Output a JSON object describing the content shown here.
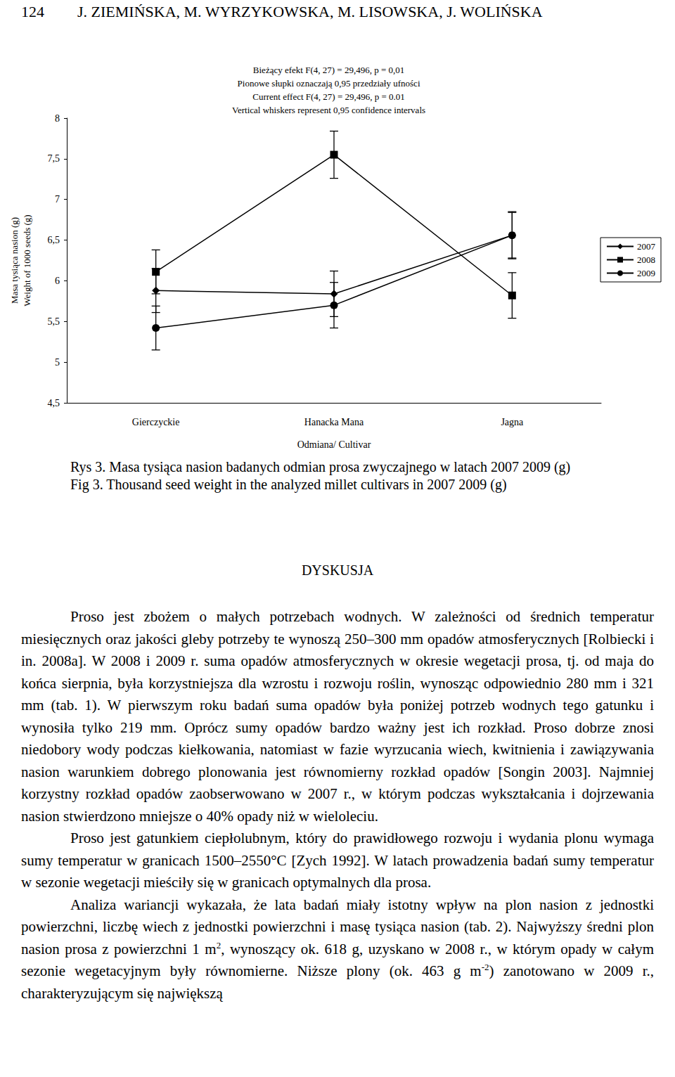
{
  "header": {
    "page_number": "124",
    "authors": "J. ZIEMIŃSKA, M. WYRZYKOWSKA, M. LISOWSKA, J. WOLIŃSKA"
  },
  "chart_data": {
    "type": "line",
    "annotations": [
      "Bieżący efekt F(4, 27) = 29,496, p = 0,01",
      "Pionowe słupki oznaczają 0,95 przedziały ufności",
      "Current effect F(4, 27) = 29,496, p = 0.01",
      "Vertical whiskers represent 0,95 confidence intervals"
    ],
    "x_label": "Odmiana/ Cultivar",
    "y_label": [
      "Masa tysiąca nasion (g)",
      "Weight of 1000 seeds (g)"
    ],
    "categories": [
      "Gierczyckie",
      "Hanacka Mana",
      "Jagna"
    ],
    "series": [
      {
        "name": "2007",
        "color": "#000000",
        "marker": "diamond",
        "values": [
          5.88,
          5.84,
          6.56
        ],
        "errors": [
          0.27,
          0.28,
          0.28
        ]
      },
      {
        "name": "2008",
        "color": "#000000",
        "marker": "square",
        "values": [
          6.11,
          7.55,
          5.82
        ],
        "errors": [
          0.27,
          0.29,
          0.28
        ]
      },
      {
        "name": "2009",
        "color": "#000000",
        "marker": "circle",
        "values": [
          5.42,
          5.7,
          6.56
        ],
        "errors": [
          0.27,
          0.28,
          0.29
        ]
      }
    ],
    "ylim": [
      4.5,
      8
    ],
    "yticks": [
      {
        "value": 4.5,
        "label": "4,5"
      },
      5,
      {
        "value": 5.5,
        "label": "5,5"
      },
      6,
      {
        "value": 6.5,
        "label": "6,5"
      },
      7,
      {
        "value": 7.5,
        "label": "7,5"
      },
      8
    ],
    "legend": "right",
    "grid": false
  },
  "captions": [
    "Rys 3. Masa tysiąca nasion badanych odmian prosa zwyczajnego w latach 2007 2009 (g)",
    "Fig 3. Thousand seed weight in the analyzed millet cultivars in 2007 2009 (g)"
  ],
  "section_title": "DYSKUSJA",
  "paragraphs": [
    [
      {
        "text": "Proso jest zbożem o małych potrzebach wodnych. W zależności od średnich temperatur miesięcznych oraz jakości gleby potrzeby te wynoszą 250–300 mm opadów atmosferycznych [Rolbiecki i in. 2008a]. W 2008 i 2009 r. suma opadów atmosferycznych w okresie wegetacji prosa, tj. od maja do końca sierpnia, była korzystniejsza dla wzrostu i rozwoju roślin, wynosząc odpowiednio 280 mm i 321 mm (tab. 1). W pierwszym roku badań suma opadów była poniżej potrzeb wodnych tego gatunku i wynosiła tylko 219 mm. Oprócz sumy opadów bardzo ważny jest ich rozkład. Proso dobrze znosi niedobory wody podczas kiełkowania, natomiast w fazie wyrzucania wiech, kwitnienia i zawiązywania nasion warunkiem dobrego plonowania jest równomierny rozkład opadów [Songin 2003]. Najmniej korzystny rozkład opadów zaobserwowano w 2007 r., w którym podczas wykształcania i dojrzewania nasion stwierdzono mniejsze o 40% opady niż w wieloleciu."
      }
    ],
    [
      {
        "text": "Proso jest gatunkiem ciepłolubnym, który do prawidłowego rozwoju i wydania plonu wymaga sumy temperatur w granicach 1500–2550°C [Zych 1992]. W latach prowadzenia badań sumy temperatur w sezonie wegetacji mieściły się w granicach optymalnych dla prosa."
      }
    ],
    [
      {
        "text": "Analiza wariancji wykazała, że lata badań miały istotny wpływ na plon nasion z jednostki powierzchni, liczbę wiech z jednostki powierzchni i masę tysiąca nasion (tab. 2). Najwyższy średni plon nasion prosa z powierzchni 1 m"
      },
      {
        "sup": "2"
      },
      {
        "text": ", wynoszący ok. 618 g, uzyskano w 2008 r., w którym opady w całym sezonie wegetacyjnym były równomierne. Niższe plony (ok. 463 g m"
      },
      {
        "sup": "-2"
      },
      {
        "text": ") zanotowano w 2009 r., charakteryzującym się największą"
      }
    ]
  ]
}
